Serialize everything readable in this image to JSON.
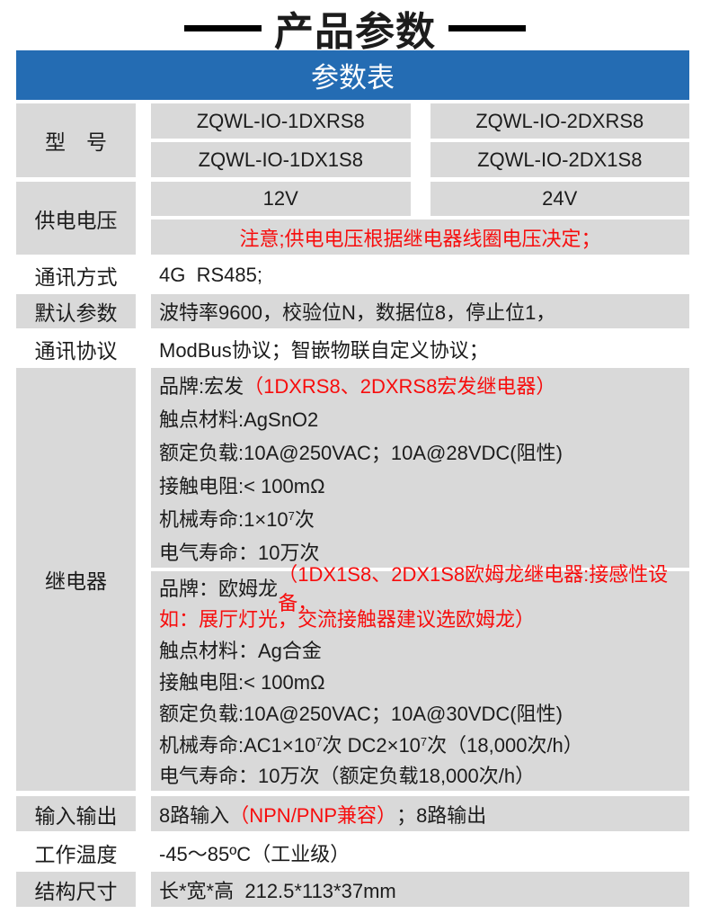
{
  "page": {
    "title": "产品参数",
    "table_header": "参数表"
  },
  "colors": {
    "header_blue": "#246cb3",
    "cell_gray": "#d9d9d9",
    "alert_red": "#f70d0d",
    "text_black": "#1c1c1c"
  },
  "table": {
    "model": {
      "label": "型　号",
      "rows": [
        [
          "ZQWL-IO-1DXRS8",
          "ZQWL-IO-2DXRS8"
        ],
        [
          "ZQWL-IO-1DX1S8",
          "ZQWL-IO-2DX1S8"
        ]
      ]
    },
    "power": {
      "label": "供电电压",
      "values": [
        "12V",
        "24V"
      ],
      "note": "注意;供电电压根据继电器线圈电压决定；"
    },
    "comm_mode": {
      "label": "通讯方式",
      "value": "4G  RS485;"
    },
    "default_params": {
      "label": "默认参数",
      "value": "波特率9600，校验位N，数据位8，停止位1，"
    },
    "protocol": {
      "label": "通讯协议",
      "value": "ModBus协议；智嵌物联自定义协议；"
    },
    "relay": {
      "label": "继电器",
      "blocks": [
        {
          "lines": [
            [
              {
                "t": "品牌:宏发"
              },
              {
                "t": "（1DXRS8、2DXRS8宏发继电器）",
                "red": true
              }
            ],
            [
              {
                "t": "触点材料:AgSnO2"
              }
            ],
            [
              {
                "t": "额定负载:10A@250VAC；10A@28VDC(阻性)"
              }
            ],
            [
              {
                "t": "接触电阻:< 100mΩ"
              }
            ],
            [
              {
                "t": "机械寿命:1×10"
              },
              {
                "t": "7",
                "sup": true
              },
              {
                "t": "次"
              }
            ],
            [
              {
                "t": "电气寿命：10万次"
              }
            ]
          ]
        },
        {
          "lines": [
            [
              {
                "t": "品牌：欧姆龙 "
              },
              {
                "t": "（1DX1S8、2DX1S8欧姆龙继电器:接感性设备，",
                "red": true
              }
            ],
            [
              {
                "t": "如：展厅灯光，交流接触器建议选欧姆龙）",
                "red": true
              }
            ],
            [
              {
                "t": "触点材料：Ag合金"
              }
            ],
            [
              {
                "t": "接触电阻:< 100mΩ"
              }
            ],
            [
              {
                "t": "额定负载:10A@250VAC；10A@30VDC(阻性)"
              }
            ],
            [
              {
                "t": "机械寿命:AC1×10"
              },
              {
                "t": "7",
                "sup": true
              },
              {
                "t": "次 DC2×10"
              },
              {
                "t": "7",
                "sup": true
              },
              {
                "t": "次（18,000次/h）"
              }
            ],
            [
              {
                "t": "电气寿命：10万次（额定负载18,000次/h）"
              }
            ]
          ]
        }
      ]
    },
    "io": {
      "label": "输入输出",
      "segments": [
        {
          "t": "8路输入"
        },
        {
          "t": "（NPN/PNP兼容）",
          "red": true
        },
        {
          "t": "；8路输出"
        }
      ]
    },
    "temperature": {
      "label": "工作温度",
      "value": "-45～85ºC（工业级）"
    },
    "dimensions": {
      "label": "结构尺寸",
      "value": "长*宽*高  212.5*113*37mm"
    }
  }
}
